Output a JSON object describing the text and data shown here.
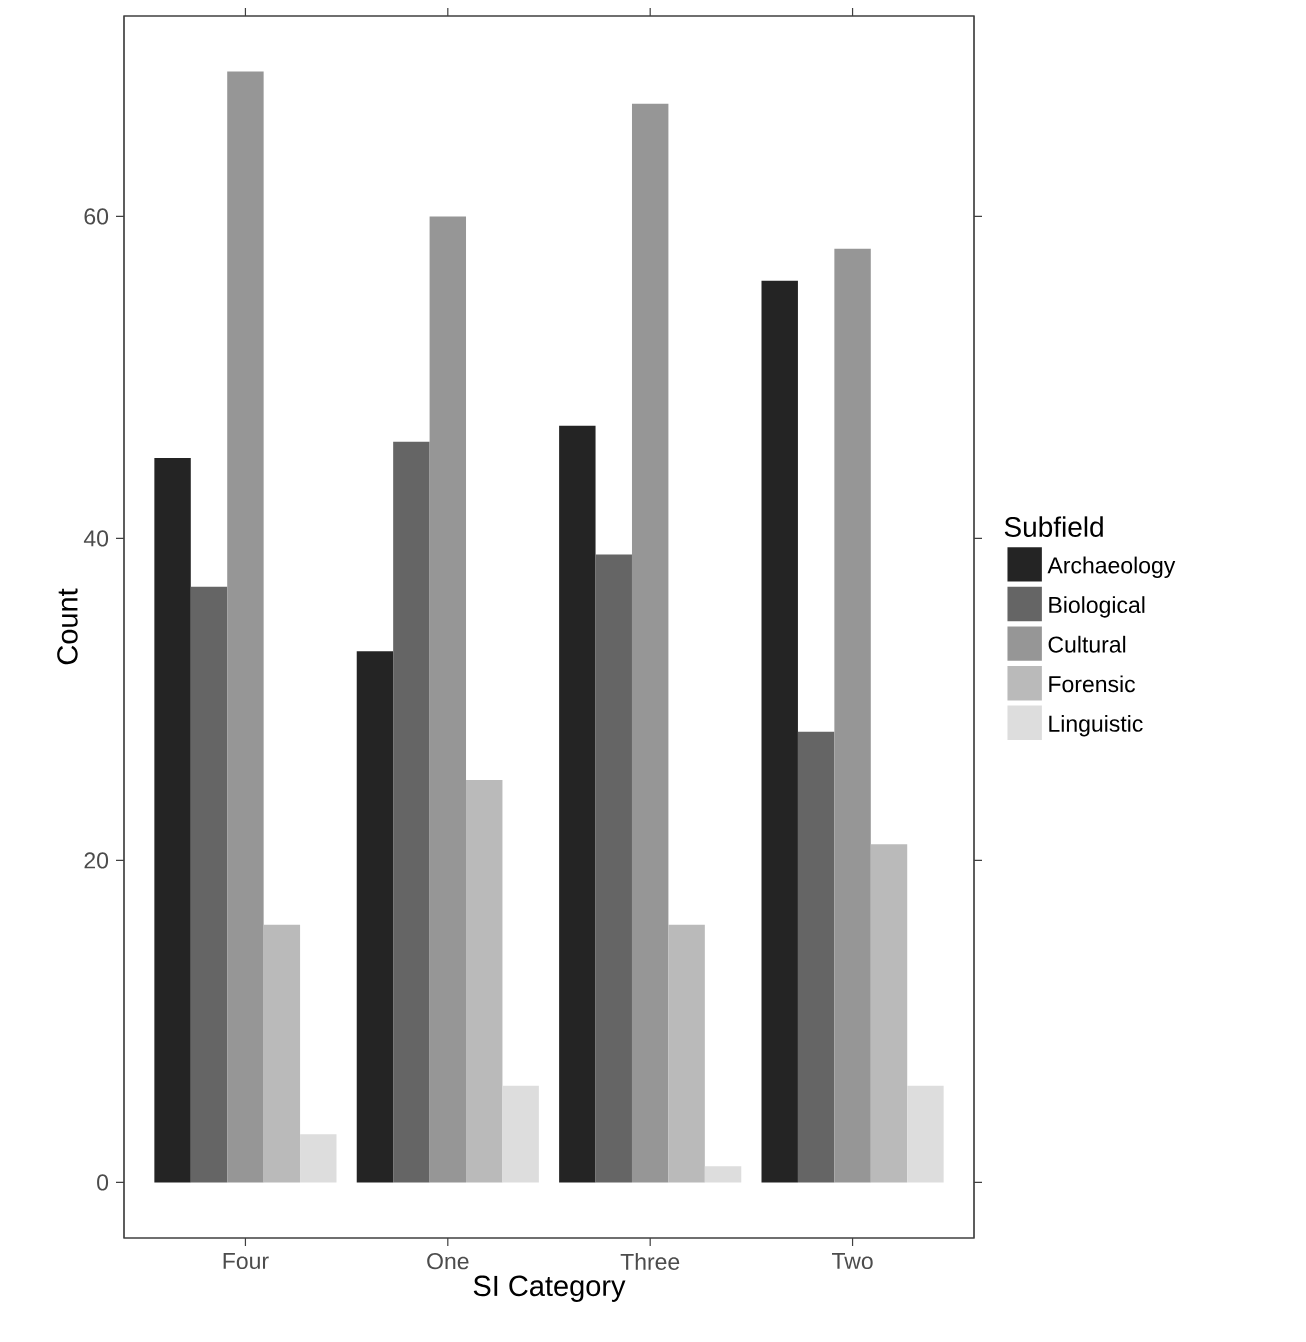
{
  "chart_data": {
    "type": "bar",
    "xlabel": "SI Category",
    "ylabel": "Count",
    "legend_title": "Subfield",
    "categories": [
      "Four",
      "One",
      "Three",
      "Two"
    ],
    "series": [
      {
        "name": "Archaeology",
        "color": "#242424",
        "values": [
          45,
          33,
          47,
          56
        ]
      },
      {
        "name": "Biological",
        "color": "#656565",
        "values": [
          37,
          46,
          39,
          28
        ]
      },
      {
        "name": "Cultural",
        "color": "#969696",
        "values": [
          69,
          60,
          67,
          58
        ]
      },
      {
        "name": "Forensic",
        "color": "#bababa",
        "values": [
          16,
          25,
          16,
          21
        ]
      },
      {
        "name": "Linguistic",
        "color": "#dddddd",
        "values": [
          3,
          6,
          1,
          6
        ]
      }
    ],
    "ylim": [
      -3.45,
      72.45
    ],
    "yticks": [
      0,
      20,
      40,
      60
    ],
    "grid": false,
    "legend": "right"
  }
}
